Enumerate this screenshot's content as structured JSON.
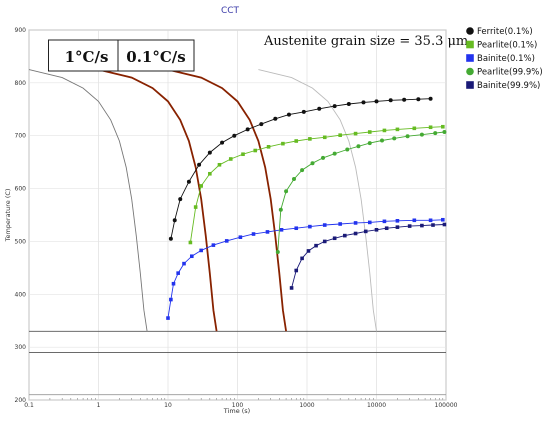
{
  "chart_data": {
    "type": "line",
    "title": "CCT",
    "xlabel": "Time (s)",
    "ylabel": "Temperature (C)",
    "xscale": "log",
    "xlim": [
      0.1,
      100000
    ],
    "ylim": [
      200,
      900
    ],
    "grid": true,
    "x_ticks": [
      {
        "value": 0.1,
        "label": "0.1"
      },
      {
        "value": 1,
        "label": "1"
      },
      {
        "value": 10,
        "label": "10"
      },
      {
        "value": 100,
        "label": "100"
      },
      {
        "value": 1000,
        "label": "1000"
      },
      {
        "value": 10000,
        "label": "10000"
      },
      {
        "value": 100000,
        "label": "100000"
      }
    ],
    "y_ticks": [
      {
        "value": 200,
        "label": "200"
      },
      {
        "value": 300,
        "label": "300"
      },
      {
        "value": 400,
        "label": "400"
      },
      {
        "value": 500,
        "label": "500"
      },
      {
        "value": 600,
        "label": "600"
      },
      {
        "value": 700,
        "label": "700"
      },
      {
        "value": 800,
        "label": "800"
      },
      {
        "value": 900,
        "label": "900"
      }
    ],
    "annotation": "Austenite grain size = 35.3 μm",
    "legend_position": "right",
    "series": [
      {
        "name": "Ferrite(0.1%)",
        "color": "#111111",
        "marker": "circle",
        "x": [
          11,
          12.5,
          15,
          20,
          28,
          40,
          60,
          90,
          140,
          220,
          350,
          550,
          900,
          1500,
          2500,
          4000,
          6500,
          10000,
          16000,
          25000,
          40000,
          60000
        ],
        "y": [
          505,
          540,
          580,
          613,
          645,
          668,
          687,
          700,
          712,
          722,
          732,
          740,
          745,
          751,
          756,
          760,
          763,
          765,
          767,
          768,
          769,
          770
        ]
      },
      {
        "name": "Pearlite(0.1%)",
        "color": "#66bb22",
        "marker": "square",
        "x": [
          21,
          25,
          30,
          40,
          55,
          80,
          120,
          180,
          280,
          450,
          700,
          1100,
          1800,
          3000,
          5000,
          8000,
          13000,
          20000,
          35000,
          60000,
          90000
        ],
        "y": [
          498,
          565,
          605,
          628,
          645,
          656,
          665,
          672,
          679,
          685,
          690,
          694,
          697,
          701,
          704,
          707,
          710,
          712,
          714,
          716,
          717
        ]
      },
      {
        "name": "Bainite(0.1%)",
        "color": "#2233ee",
        "marker": "square",
        "x": [
          10,
          11,
          12,
          14,
          17,
          22,
          30,
          45,
          70,
          110,
          170,
          270,
          430,
          700,
          1100,
          1800,
          3000,
          5000,
          8000,
          13000,
          20000,
          35000,
          60000,
          90000
        ],
        "y": [
          355,
          390,
          420,
          440,
          458,
          472,
          483,
          493,
          501,
          508,
          514,
          518,
          522,
          525,
          528,
          531,
          533,
          535,
          536,
          538,
          539,
          540,
          540,
          541
        ]
      },
      {
        "name": "Pearlite(99.9%)",
        "color": "#44aa33",
        "marker": "circle",
        "x": [
          380,
          420,
          500,
          650,
          850,
          1200,
          1700,
          2500,
          3800,
          5500,
          8000,
          12000,
          18000,
          28000,
          45000,
          70000,
          95000
        ],
        "y": [
          480,
          560,
          595,
          618,
          635,
          648,
          658,
          666,
          674,
          680,
          686,
          691,
          695,
          699,
          702,
          705,
          707
        ]
      },
      {
        "name": "Bainite(99.9%)",
        "color": "#1a1a77",
        "marker": "square",
        "x": [
          600,
          700,
          850,
          1050,
          1350,
          1800,
          2500,
          3500,
          5000,
          7000,
          10000,
          14000,
          20000,
          30000,
          45000,
          65000,
          95000
        ],
        "y": [
          412,
          445,
          468,
          482,
          492,
          500,
          506,
          511,
          515,
          519,
          522,
          525,
          527,
          529,
          530,
          531,
          532
        ]
      }
    ],
    "cooling_curves": [
      {
        "label": "",
        "color": "#777777",
        "x": [
          0.1,
          0.3,
          0.6,
          1.0,
          1.5,
          2.0,
          2.5,
          3.0,
          3.5,
          4.0,
          4.5,
          5.0
        ],
        "y": [
          825,
          810,
          790,
          765,
          730,
          690,
          640,
          580,
          510,
          440,
          370,
          330
        ]
      },
      {
        "label": "1°C/s",
        "color": "#882200",
        "x": [
          1,
          3,
          6,
          10,
          15,
          20,
          25,
          30,
          35,
          40,
          45,
          50
        ],
        "y": [
          825,
          810,
          790,
          765,
          730,
          690,
          640,
          580,
          510,
          440,
          370,
          330
        ]
      },
      {
        "label": "0.1°C/s",
        "color": "#882200",
        "x": [
          10,
          30,
          60,
          100,
          150,
          200,
          250,
          300,
          350,
          400,
          450,
          500
        ],
        "y": [
          825,
          810,
          790,
          765,
          730,
          690,
          640,
          580,
          510,
          440,
          370,
          330
        ]
      },
      {
        "label": "",
        "color": "#bbbbbb",
        "x": [
          200,
          600,
          1200,
          2000,
          3000,
          4000,
          5000,
          6000,
          7000,
          8000,
          9000,
          10000
        ],
        "y": [
          825,
          810,
          790,
          765,
          730,
          690,
          640,
          580,
          510,
          440,
          370,
          330
        ]
      }
    ],
    "reference_lines": [
      {
        "y": 330,
        "color": "#555555"
      },
      {
        "y": 290,
        "color": "#555555"
      },
      {
        "y": 210,
        "color": "#999999"
      }
    ]
  }
}
